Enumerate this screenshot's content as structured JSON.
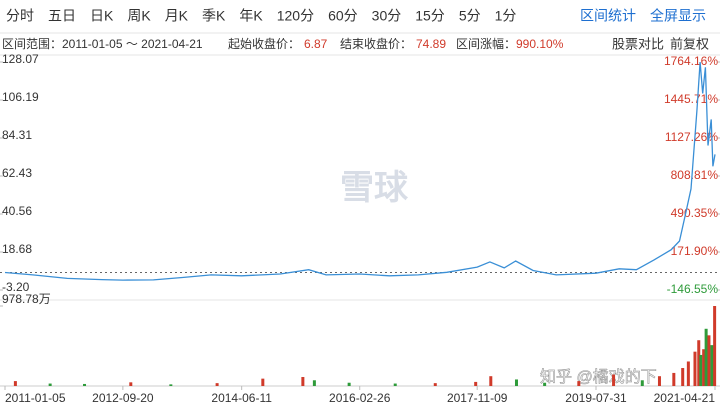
{
  "toolbar": {
    "periods": [
      "分时",
      "五日",
      "日K",
      "周K",
      "月K",
      "季K",
      "年K",
      "120分",
      "60分",
      "30分",
      "15分",
      "5分",
      "1分"
    ],
    "actions": [
      "区间统计",
      "全屏显示"
    ]
  },
  "info": {
    "range_label": "区间范围：",
    "range": "2011-01-05 ～ 2021-04-21",
    "start_label": "起始收盘价：",
    "start": "6.87",
    "end_label": "结束收盘价：",
    "end": "74.89",
    "change_label": "区间涨幅：",
    "change": "990.10%",
    "compare": "股票对比",
    "adjust": "前复权"
  },
  "watermarks": [
    "雪球",
    "知乎 @橘戏的下"
  ],
  "chart_data": {
    "type": "line",
    "color": "#3a8fd6",
    "baseline": 6.87,
    "x": [
      "2011-01-05",
      "2011-06-01",
      "2011-12-01",
      "2012-06-01",
      "2012-09-20",
      "2013-03-01",
      "2013-08-01",
      "2014-01-01",
      "2014-06-11",
      "2015-01-01",
      "2015-06-01",
      "2015-09-01",
      "2016-02-26",
      "2016-08-01",
      "2017-01-01",
      "2017-06-01",
      "2017-11-09",
      "2018-01-15",
      "2018-04-01",
      "2018-06-01",
      "2018-09-01",
      "2019-01-01",
      "2019-07-31",
      "2019-12-01",
      "2020-03-01",
      "2020-06-01",
      "2020-09-01",
      "2020-10-15",
      "2020-11-15",
      "2020-12-15",
      "2021-01-15",
      "2021-02-01",
      "2021-02-15",
      "2021-03-01",
      "2021-03-15",
      "2021-04-01",
      "2021-04-10",
      "2021-04-21"
    ],
    "series": [
      {
        "values": [
          6.87,
          5.5,
          3.5,
          2.8,
          2.5,
          2.6,
          4.0,
          5.5,
          5.0,
          6.0,
          8.5,
          5.5,
          6.0,
          5.0,
          5.5,
          7.0,
          10.0,
          13.0,
          9.5,
          13.5,
          8.0,
          5.5,
          6.5,
          9.0,
          8.5,
          14.0,
          20.0,
          25.0,
          40.0,
          55.0,
          100.0,
          128.07,
          110.0,
          125.0,
          80.0,
          95.0,
          68.0,
          74.89
        ]
      }
    ],
    "xlim": [
      "2011-01-05",
      "2021-04-21"
    ],
    "xticks": [
      "2011-01-05",
      "2012-09-20",
      "2014-06-11",
      "2016-02-26",
      "2017-11-09",
      "2019-07-31",
      "2021-04-21"
    ],
    "ylim": [
      -3.2,
      128.07
    ],
    "yticks": [
      128.07,
      106.19,
      84.31,
      62.43,
      40.56,
      18.68,
      {
        "value": -3.2,
        "label": "-3.20"
      }
    ],
    "y2lim": [
      -146.55,
      1764.16
    ],
    "y2ticks": [
      {
        "value": 1764.16,
        "label": "1764.16%"
      },
      {
        "value": 1445.71,
        "label": "1445.71%"
      },
      {
        "value": 1127.26,
        "label": "1127.26%"
      },
      {
        "value": 808.81,
        "label": "808.81%"
      },
      {
        "value": 490.35,
        "label": "490.35%"
      },
      {
        "value": 171.9,
        "label": "171.90%"
      },
      {
        "value": -146.55,
        "label": "-146.55%"
      }
    ],
    "volume": {
      "ylim": [
        0,
        978.78
      ],
      "yticks": [
        {
          "value": 978.78,
          "label": "978.78万"
        }
      ],
      "x": [
        "2011-03-01",
        "2011-09-01",
        "2012-03-01",
        "2012-11-01",
        "2013-06-01",
        "2014-02-01",
        "2014-10-01",
        "2015-05-01",
        "2015-07-01",
        "2016-01-01",
        "2016-09-01",
        "2017-04-01",
        "2017-11-01",
        "2018-01-20",
        "2018-06-05",
        "2018-11-01",
        "2019-05-01",
        "2019-11-01",
        "2020-04-01",
        "2020-07-01",
        "2020-09-15",
        "2020-11-01",
        "2020-12-01",
        "2021-01-05",
        "2021-01-25",
        "2021-02-05",
        "2021-02-20",
        "2021-03-05",
        "2021-03-20",
        "2021-04-05",
        "2021-04-19"
      ],
      "values": [
        60,
        30,
        25,
        45,
        20,
        35,
        90,
        110,
        70,
        40,
        30,
        35,
        50,
        120,
        80,
        40,
        60,
        140,
        70,
        120,
        160,
        220,
        300,
        420,
        560,
        380,
        450,
        700,
        620,
        500,
        978.78
      ],
      "colors": [
        "#d03a2a",
        "#2e9b3a",
        "#2e9b3a",
        "#d03a2a",
        "#2e9b3a",
        "#d03a2a",
        "#d03a2a",
        "#d03a2a",
        "#2e9b3a",
        "#2e9b3a",
        "#2e9b3a",
        "#d03a2a",
        "#d03a2a",
        "#d03a2a",
        "#2e9b3a",
        "#2e9b3a",
        "#d03a2a",
        "#d03a2a",
        "#2e9b3a",
        "#d03a2a",
        "#d03a2a",
        "#d03a2a",
        "#d03a2a",
        "#d03a2a",
        "#d03a2a",
        "#2e9b3a",
        "#d03a2a",
        "#2e9b3a",
        "#d03a2a",
        "#2e9b3a",
        "#d03a2a"
      ]
    }
  }
}
